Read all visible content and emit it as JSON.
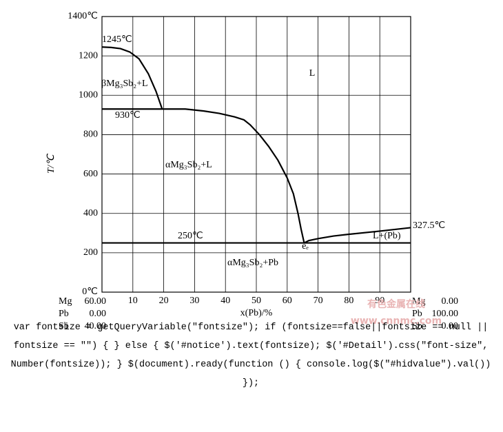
{
  "chart_data": {
    "type": "line",
    "x_label": "x(Pb)/%",
    "y_label": "T/℃",
    "xlim": [
      0,
      100
    ],
    "ylim": [
      0,
      1400
    ],
    "xticks": [
      10,
      20,
      30,
      40,
      50,
      60,
      70,
      80,
      90
    ],
    "yticks": [
      {
        "value": 0,
        "label": "0℃"
      },
      200,
      400,
      600,
      800,
      1000,
      1200,
      {
        "value": 1400,
        "label": "1400℃"
      }
    ],
    "grid": true,
    "series": [
      {
        "color": "#000000",
        "x": [
          0,
          3,
          6,
          9,
          12,
          15,
          17.5,
          19.5
        ],
        "values": [
          1245,
          1243,
          1237,
          1220,
          1185,
          1110,
          1020,
          930
        ]
      },
      {
        "color": "#000000",
        "x": [
          0,
          19.5,
          27,
          33,
          38,
          43,
          46,
          48,
          51,
          54,
          57,
          60,
          62,
          63.5,
          64.5,
          65.5
        ],
        "values": [
          930,
          930,
          930,
          920,
          908,
          890,
          875,
          850,
          800,
          740,
          670,
          580,
          500,
          400,
          320,
          250
        ]
      },
      {
        "color": "#000000",
        "x": [
          65.5,
          67,
          70,
          75,
          80,
          90,
          100
        ],
        "values": [
          250,
          262,
          272,
          285,
          294,
          310,
          327.5
        ]
      },
      {
        "color": "#000000",
        "x": [
          0,
          100
        ],
        "values": [
          250,
          250
        ]
      }
    ],
    "annotations": [
      "1245℃",
      "βMg₃Sb₂+L",
      "930℃",
      "L",
      "αMg₃Sb₂+L",
      "250℃",
      "eₑ",
      "L+(Pb)",
      "327.5℃",
      "αMg₃Sb₂+Pb"
    ]
  },
  "composition": {
    "left": [
      [
        "Mg",
        "60.00"
      ],
      [
        "Pb",
        "0.00"
      ],
      [
        "Sb",
        "40.00"
      ]
    ],
    "right": [
      [
        "Mg",
        "0.00"
      ],
      [
        "Pb",
        "100.00"
      ],
      [
        "Sb",
        "0.00"
      ]
    ]
  },
  "watermark": [
    "有色金属在线",
    "www.cnnmc.com"
  ],
  "body_text": "var fontsize = getQueryVariable(\"fontsize\"); if (fontsize==false||fontsize == null || fontsize == \"\") { } else { $('#notice').text(fontsize); $('#Detail').css(\"font-size\", Number(fontsize)); } $(document).ready(function () { console.log($(\"#hidvalue\").val()) });"
}
